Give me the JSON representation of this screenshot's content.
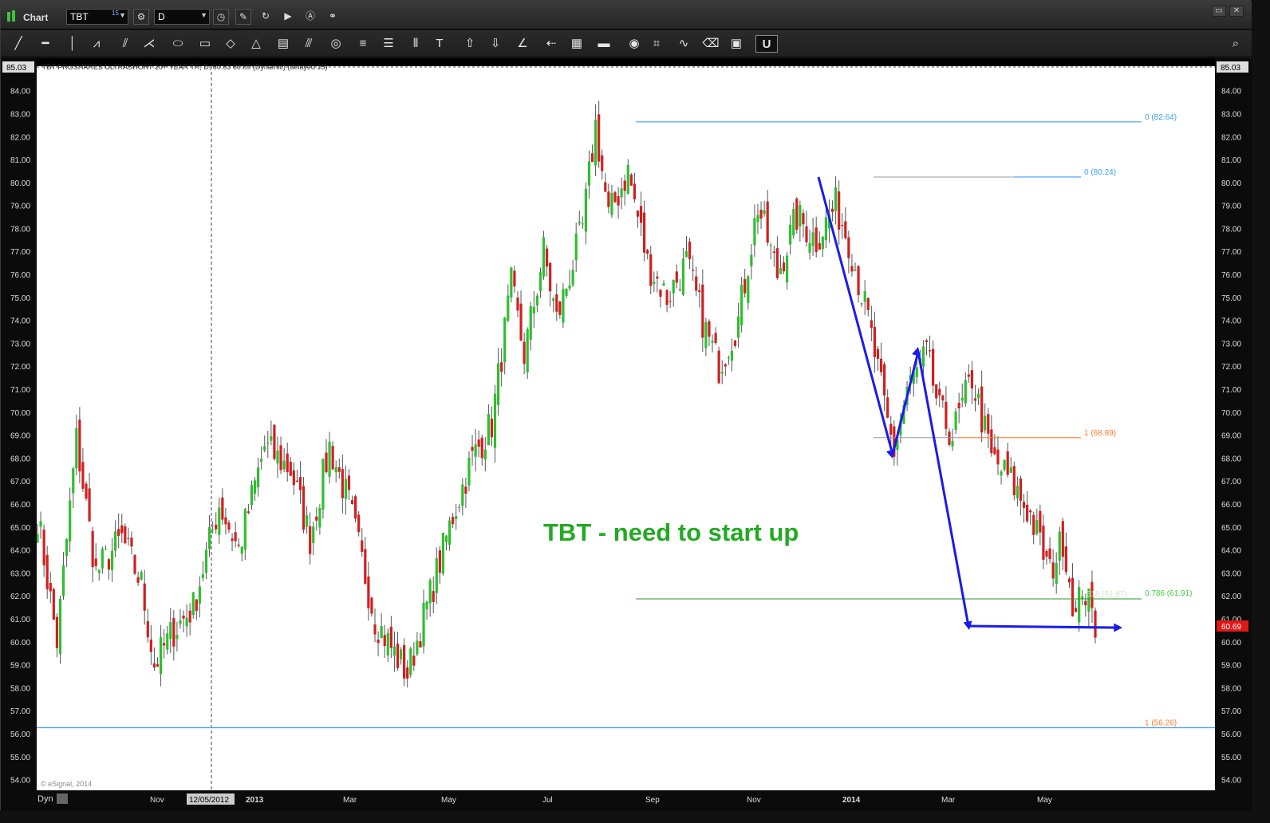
{
  "window": {
    "title": "Chart",
    "symbol": "TBT",
    "symbol_badge": "15",
    "interval": "D"
  },
  "toolbar_icons": [
    "line-tool-icon",
    "horizontal-line-icon",
    "vertical-line-icon",
    "pattern-icon",
    "fork-icon",
    "fan-icon",
    "ellipse-icon",
    "rectangle-icon",
    "diamond-icon",
    "triangle-icon",
    "channel-icon",
    "parallel-lines-icon",
    "cycle-icon",
    "fib-retrace-icon",
    "fib-ext-icon",
    "gann-icon",
    "text-tool-icon",
    "up-arrow-icon",
    "down-arrow-icon",
    "angle-icon",
    "arrow-icon",
    "grid-icon",
    "mob-icon",
    "eye-icon",
    "pti-icon",
    "wave-icon",
    "eraser-icon",
    "comment-icon",
    "magnet-icon"
  ],
  "chart_data": {
    "type": "candlestick",
    "symbol_header": "TBT PROSHARES ULTRASHORT 20+ YEAR TR, D, 60.63 60.69 (Dynamic) (delayed 15)",
    "top_price_label": "85.03",
    "y_ticks": [
      "84.00",
      "83.00",
      "82.00",
      "81.00",
      "80.00",
      "79.00",
      "78.00",
      "77.00",
      "76.00",
      "75.00",
      "74.00",
      "73.00",
      "72.00",
      "71.00",
      "70.00",
      "69.00",
      "68.00",
      "67.00",
      "66.00",
      "65.00",
      "64.00",
      "63.00",
      "62.00",
      "61.00",
      "60.00",
      "59.00",
      "58.00",
      "57.00",
      "56.00",
      "55.00",
      "54.00"
    ],
    "ylim": [
      53.5,
      85.03
    ],
    "x_labels": [
      "Nov",
      "12/05/2012",
      "2013",
      "Mar",
      "May",
      "Jul",
      "Sep",
      "Nov",
      "2014",
      "Mar",
      "May"
    ],
    "x_label_left": "Dyn",
    "last_price": "60.69",
    "watermark": "© eSignal, 2014",
    "annotation": "TBT - need to start up",
    "fib_labels": [
      {
        "text": "0 (82.64)",
        "value": 82.64,
        "color": "#3aa0ff"
      },
      {
        "text": "0 (80.24)",
        "value": 80.24,
        "color": "#3aa0ff"
      },
      {
        "text": "1 (68.89)",
        "value": 68.89,
        "color": "#ff7a2a"
      },
      {
        "text": ".618 (61.87)",
        "value": 61.87,
        "color": "#cfe7c0"
      },
      {
        "text": "0.786 (61.91)",
        "value": 61.91,
        "color": "#3fcf3f"
      },
      {
        "text": "1 (56.26)",
        "value": 56.26,
        "color": "#ff7a2a"
      }
    ],
    "anchors": [
      {
        "t": 0,
        "p": 65.5
      },
      {
        "t": 6,
        "p": 60.0
      },
      {
        "t": 12,
        "p": 68.8
      },
      {
        "t": 18,
        "p": 63.0
      },
      {
        "t": 26,
        "p": 64.5
      },
      {
        "t": 32,
        "p": 62.5
      },
      {
        "t": 36,
        "p": 59.0
      },
      {
        "t": 42,
        "p": 60.5
      },
      {
        "t": 48,
        "p": 61.5
      },
      {
        "t": 56,
        "p": 66.0
      },
      {
        "t": 62,
        "p": 64.0
      },
      {
        "t": 70,
        "p": 68.5
      },
      {
        "t": 78,
        "p": 67.5
      },
      {
        "t": 84,
        "p": 64.5
      },
      {
        "t": 90,
        "p": 68.5
      },
      {
        "t": 96,
        "p": 66.0
      },
      {
        "t": 104,
        "p": 61.0
      },
      {
        "t": 110,
        "p": 59.5
      },
      {
        "t": 114,
        "p": 58.6
      },
      {
        "t": 122,
        "p": 62.5
      },
      {
        "t": 128,
        "p": 65.5
      },
      {
        "t": 134,
        "p": 68.0
      },
      {
        "t": 140,
        "p": 69.5
      },
      {
        "t": 146,
        "p": 75.5
      },
      {
        "t": 150,
        "p": 72.5
      },
      {
        "t": 156,
        "p": 77.0
      },
      {
        "t": 160,
        "p": 74.0
      },
      {
        "t": 168,
        "p": 78.0
      },
      {
        "t": 172,
        "p": 82.5
      },
      {
        "t": 176,
        "p": 78.5
      },
      {
        "t": 182,
        "p": 80.5
      },
      {
        "t": 188,
        "p": 76.5
      },
      {
        "t": 194,
        "p": 75.0
      },
      {
        "t": 200,
        "p": 76.5
      },
      {
        "t": 206,
        "p": 73.5
      },
      {
        "t": 210,
        "p": 72.0
      },
      {
        "t": 216,
        "p": 74.0
      },
      {
        "t": 222,
        "p": 79.0
      },
      {
        "t": 228,
        "p": 76.0
      },
      {
        "t": 234,
        "p": 78.5
      },
      {
        "t": 240,
        "p": 77.5
      },
      {
        "t": 246,
        "p": 79.0
      },
      {
        "t": 250,
        "p": 77.5
      },
      {
        "t": 256,
        "p": 74.0
      },
      {
        "t": 262,
        "p": 69.5
      },
      {
        "t": 264,
        "p": 68.3
      },
      {
        "t": 268,
        "p": 71.0
      },
      {
        "t": 274,
        "p": 72.5
      },
      {
        "t": 278,
        "p": 70.0
      },
      {
        "t": 282,
        "p": 69.0
      },
      {
        "t": 288,
        "p": 71.5
      },
      {
        "t": 294,
        "p": 68.0
      },
      {
        "t": 300,
        "p": 67.0
      },
      {
        "t": 306,
        "p": 65.5
      },
      {
        "t": 312,
        "p": 63.0
      },
      {
        "t": 316,
        "p": 64.5
      },
      {
        "t": 320,
        "p": 61.0
      },
      {
        "t": 322,
        "p": 62.5
      },
      {
        "t": 326,
        "p": 60.7
      }
    ]
  }
}
